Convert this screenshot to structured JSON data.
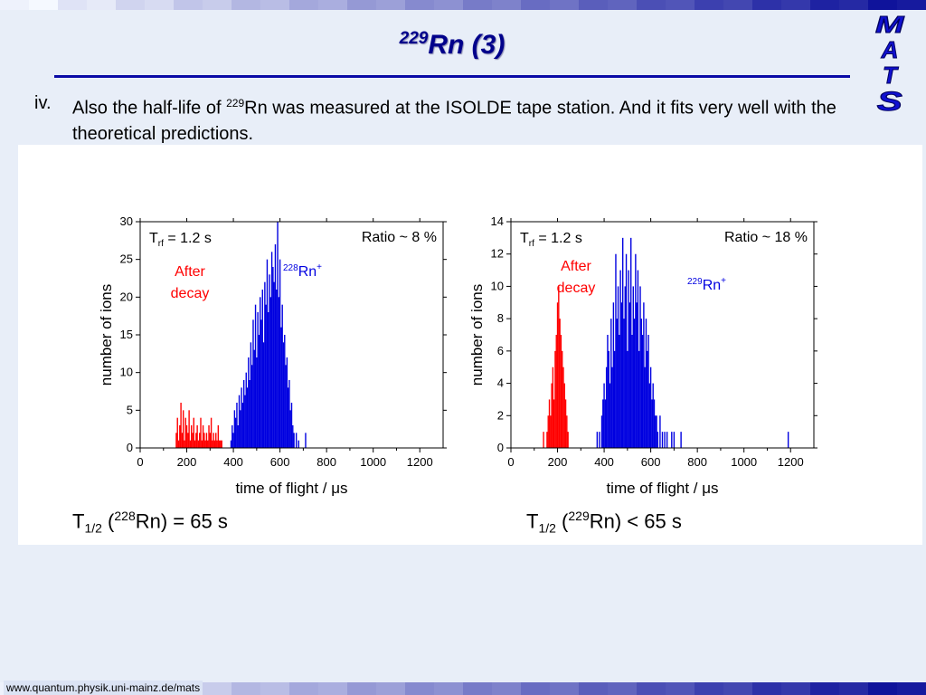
{
  "slide": {
    "title_sup": "229",
    "title_main": "Rn (3)",
    "bullet_marker": "iv.",
    "bullet_part1": "Also the half-life of ",
    "bullet_sup": "229",
    "bullet_part2": "Rn was measured at the ISOLDE tape station. And it fits very well with the theoretical predictions.",
    "footer_url": "www.quantum.physik.uni-mainz.de/mats",
    "logo_letters": [
      "M",
      "A",
      "T",
      "S"
    ]
  },
  "colors": {
    "title": "#00008b",
    "rule": "#0a0aa6",
    "after_decay": "#ff0000",
    "ion_peak": "#0000e0",
    "background": "#e8eef8"
  },
  "formulas": [
    {
      "t": "T",
      "sub": "1/2",
      "open": " (",
      "sup": "228",
      "rest": "Rn) = 65 s"
    },
    {
      "t": "T",
      "sub": "1/2",
      "open": " (",
      "sup": "229",
      "rest": "Rn) < 65 s"
    }
  ],
  "chart_data": [
    {
      "type": "bar",
      "xlabel": "time of flight / μs",
      "ylabel": "number of ions",
      "xlim": [
        0,
        1300
      ],
      "ylim": [
        0,
        30
      ],
      "xticks": [
        0,
        200,
        400,
        600,
        800,
        1000,
        1200
      ],
      "yticks": [
        0,
        5,
        10,
        15,
        20,
        25,
        30
      ],
      "annotations": {
        "trf": {
          "t": "T",
          "sub": "rf",
          "rest": " = 1.2 s"
        },
        "ratio": "Ratio ~ 8 %",
        "after_decay": [
          "After",
          "decay"
        ],
        "peak": {
          "sup": "228",
          "main": "Rn",
          "charge": "+"
        }
      },
      "series": [
        {
          "color": "#ff0000",
          "x": [
            155,
            160,
            165,
            170,
            175,
            180,
            185,
            190,
            195,
            200,
            205,
            210,
            215,
            220,
            225,
            230,
            235,
            240,
            245,
            250,
            255,
            260,
            265,
            270,
            275,
            280,
            285,
            290,
            295,
            300,
            305,
            310,
            315,
            320,
            325,
            330,
            335,
            340,
            345,
            350
          ],
          "values": [
            2,
            4,
            1,
            3,
            6,
            2,
            5,
            1,
            4,
            3,
            2,
            5,
            1,
            3,
            2,
            4,
            1,
            2,
            3,
            1,
            2,
            4,
            1,
            3,
            2,
            1,
            2,
            1,
            3,
            2,
            4,
            1,
            2,
            1,
            2,
            1,
            3,
            1,
            1,
            1
          ]
        },
        {
          "color": "#0000e0",
          "x": [
            390,
            395,
            400,
            405,
            410,
            415,
            420,
            425,
            430,
            435,
            440,
            445,
            450,
            455,
            460,
            465,
            470,
            475,
            480,
            485,
            490,
            495,
            500,
            505,
            510,
            515,
            520,
            525,
            530,
            535,
            540,
            545,
            550,
            555,
            560,
            565,
            570,
            575,
            580,
            585,
            590,
            595,
            600,
            605,
            610,
            615,
            620,
            625,
            630,
            635,
            640,
            645,
            650,
            655,
            660,
            670,
            680,
            710
          ],
          "values": [
            1,
            3,
            2,
            5,
            4,
            6,
            3,
            7,
            5,
            8,
            6,
            9,
            7,
            10,
            8,
            12,
            9,
            14,
            11,
            17,
            13,
            19,
            12,
            18,
            15,
            20,
            17,
            21,
            14,
            22,
            19,
            25,
            18,
            23,
            20,
            26,
            24,
            22,
            27,
            21,
            30,
            20,
            25,
            16,
            19,
            14,
            15,
            11,
            12,
            8,
            9,
            5,
            6,
            3,
            2,
            2,
            1,
            2
          ]
        }
      ]
    },
    {
      "type": "bar",
      "xlabel": "time of flight / μs",
      "ylabel": "number of ions",
      "xlim": [
        0,
        1300
      ],
      "ylim": [
        0,
        14
      ],
      "xticks": [
        0,
        200,
        400,
        600,
        800,
        1000,
        1200
      ],
      "yticks": [
        0,
        2,
        4,
        6,
        8,
        10,
        12,
        14
      ],
      "annotations": {
        "trf": {
          "t": "T",
          "sub": "rf",
          "rest": " = 1.2 s"
        },
        "ratio": "Ratio ~ 18 %",
        "after_decay": [
          "After",
          "decay"
        ],
        "peak": {
          "sup": "229",
          "main": "Rn",
          "charge": "+"
        }
      },
      "series": [
        {
          "color": "#ff0000",
          "x": [
            140,
            155,
            160,
            165,
            170,
            175,
            180,
            185,
            190,
            195,
            200,
            205,
            210,
            215,
            220,
            225,
            230,
            235,
            240,
            245
          ],
          "values": [
            1,
            1,
            2,
            3,
            2,
            4,
            5,
            3,
            6,
            7,
            9,
            10,
            8,
            7,
            6,
            5,
            4,
            3,
            2,
            1
          ]
        },
        {
          "color": "#0000e0",
          "x": [
            370,
            380,
            390,
            395,
            400,
            405,
            410,
            415,
            420,
            425,
            430,
            435,
            440,
            445,
            450,
            455,
            460,
            465,
            470,
            475,
            480,
            485,
            490,
            495,
            500,
            505,
            510,
            515,
            520,
            525,
            530,
            535,
            540,
            545,
            550,
            555,
            560,
            565,
            570,
            575,
            580,
            585,
            590,
            595,
            600,
            605,
            610,
            615,
            620,
            625,
            630,
            640,
            650,
            660,
            670,
            690,
            700,
            730,
            1190
          ],
          "values": [
            1,
            1,
            2,
            3,
            4,
            3,
            5,
            7,
            6,
            4,
            8,
            5,
            9,
            6,
            12,
            8,
            10,
            7,
            11,
            9,
            13,
            8,
            10,
            12,
            6,
            11,
            9,
            13,
            7,
            10,
            8,
            12,
            9,
            11,
            6,
            10,
            8,
            7,
            9,
            5,
            8,
            6,
            7,
            4,
            5,
            3,
            4,
            3,
            2,
            2,
            1,
            2,
            1,
            1,
            1,
            1,
            1,
            1,
            1
          ]
        }
      ]
    }
  ]
}
